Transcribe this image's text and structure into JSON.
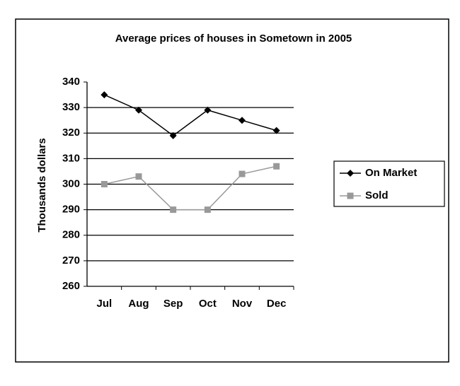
{
  "chart_data": {
    "type": "line",
    "title": "Average prices of houses in Sometown in 2005",
    "y_label": "Thousands dollars",
    "categories": [
      "Jul",
      "Aug",
      "Sep",
      "Oct",
      "Nov",
      "Dec"
    ],
    "series": [
      {
        "name": "On Market",
        "color": "#000000",
        "marker": "diamond",
        "values": [
          335,
          329,
          319,
          329,
          325,
          321
        ]
      },
      {
        "name": "Sold",
        "color": "#999999",
        "marker": "square",
        "values": [
          300,
          303,
          290,
          290,
          304,
          307
        ]
      }
    ],
    "ylim": [
      260,
      340
    ],
    "yticks": [
      260,
      270,
      280,
      290,
      300,
      310,
      320,
      330,
      340
    ],
    "grid": true,
    "legend": "right"
  }
}
